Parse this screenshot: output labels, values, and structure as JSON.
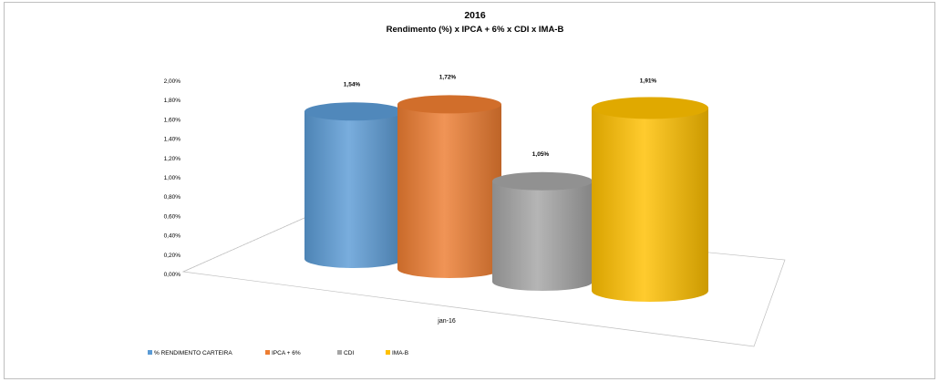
{
  "chart_data": {
    "type": "bar",
    "title": "2016",
    "subtitle": "Rendimento (%) x IPCA + 6%  x CDI x IMA-B",
    "categories": [
      "jan-16"
    ],
    "series": [
      {
        "name": "% RENDIMENTO CARTEIRA",
        "values": [
          1.54
        ],
        "label": "1,54%",
        "color": "#5b9bd5"
      },
      {
        "name": "IPCA + 6%",
        "values": [
          1.72
        ],
        "label": "1,72%",
        "color": "#ed7d31"
      },
      {
        "name": "CDI",
        "values": [
          1.05
        ],
        "label": "1,05%",
        "color": "#a5a5a5"
      },
      {
        "name": "IMA-B",
        "values": [
          1.91
        ],
        "label": "1,91%",
        "color": "#ffc000"
      }
    ],
    "ylim": [
      0,
      2.0
    ],
    "yticks": [
      "0,00%",
      "0,20%",
      "0,40%",
      "0,60%",
      "0,80%",
      "1,00%",
      "1,20%",
      "1,40%",
      "1,60%",
      "1,80%",
      "2,00%"
    ],
    "xlabel": "",
    "ylabel": "",
    "legend_position": "bottom-left",
    "grid": false,
    "style": "3d-cylinder"
  }
}
